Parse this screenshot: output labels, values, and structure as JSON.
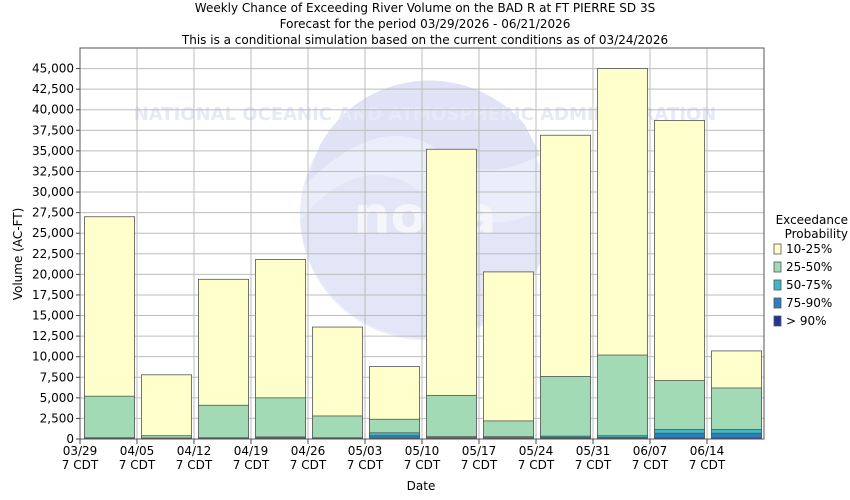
{
  "chart_data": {
    "type": "bar",
    "title_lines": [
      "Weekly Chance of Exceeding River Volume on the BAD R at FT PIERRE SD 3S",
      "Forecast for the period 03/29/2026 - 06/21/2026",
      "This is a conditional simulation based on the current conditions as of 03/24/2026"
    ],
    "xlabel": "Date",
    "ylabel": "Volume (AC-FT)",
    "ylim": [
      0,
      47500
    ],
    "grid": true,
    "yticks": [
      0,
      2500,
      5000,
      7500,
      10000,
      12500,
      15000,
      17500,
      20000,
      22500,
      25000,
      27500,
      30000,
      32500,
      35000,
      37500,
      40000,
      42500,
      45000
    ],
    "ytick_labels": [
      "0",
      "2,500",
      "5,000",
      "7,500",
      "10,000",
      "12,500",
      "15,000",
      "17,500",
      "20,000",
      "22,500",
      "25,000",
      "27,500",
      "30,000",
      "32,500",
      "35,000",
      "37,500",
      "40,000",
      "42,500",
      "45,000"
    ],
    "xtick_dates": [
      "03/29",
      "04/05",
      "04/12",
      "04/19",
      "04/26",
      "05/03",
      "05/10",
      "05/17",
      "05/24",
      "05/31",
      "06/07",
      "06/14"
    ],
    "xtick_time": "7 CDT",
    "legend": {
      "title_lines": [
        "Exceedance",
        "Probability"
      ],
      "placement": "right",
      "items": [
        {
          "label": "10-25%",
          "color": "#ffffcc"
        },
        {
          "label": "25-50%",
          "color": "#a1dab4"
        },
        {
          "label": "50-75%",
          "color": "#41b6c4"
        },
        {
          "label": "75-90%",
          "color": "#2c7fb8"
        },
        {
          "label": "> 90%",
          "color": "#253494"
        }
      ]
    },
    "series": [
      {
        "name": "10-25%",
        "color": "#ffffcc",
        "values": [
          27000,
          7800,
          19400,
          21800,
          13600,
          8800,
          35200,
          20300,
          36900,
          45000,
          38700,
          10700
        ]
      },
      {
        "name": "25-50%",
        "color": "#a1dab4",
        "values": [
          5200,
          400,
          4100,
          5000,
          2800,
          2400,
          5300,
          2200,
          7600,
          10200,
          7100,
          6200
        ]
      },
      {
        "name": "50-75%",
        "color": "#41b6c4",
        "values": [
          150,
          120,
          150,
          250,
          150,
          750,
          280,
          280,
          350,
          400,
          1150,
          1150
        ]
      },
      {
        "name": "75-90%",
        "color": "#2c7fb8",
        "values": [
          100,
          80,
          100,
          150,
          100,
          400,
          150,
          150,
          200,
          200,
          700,
          700
        ]
      },
      {
        "name": "> 90%",
        "color": "#253494",
        "values": [
          50,
          40,
          50,
          80,
          50,
          100,
          80,
          80,
          100,
          100,
          150,
          150
        ]
      }
    ],
    "watermark": "NATIONAL OCEANIC AND ATMOSPHERIC ADMINISTRATION"
  }
}
